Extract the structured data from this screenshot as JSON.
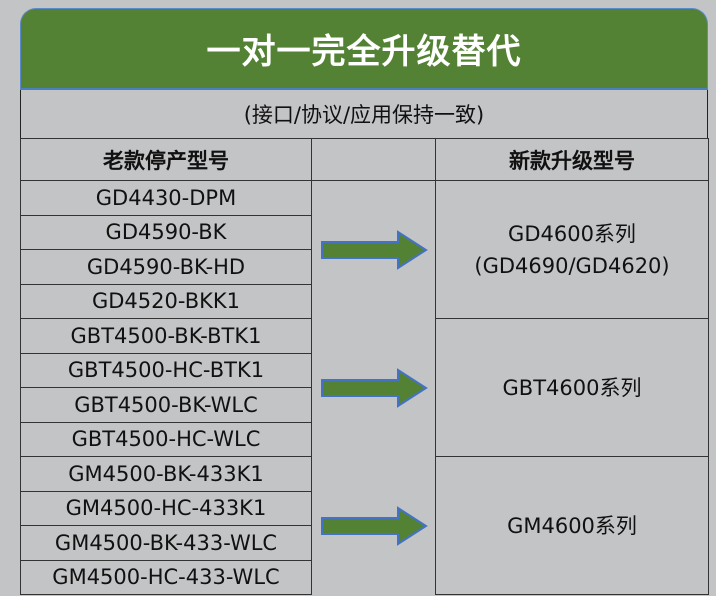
{
  "title": "一对一完全升级替代",
  "subtitle": "(接口/协议/应用保持一致)",
  "headers": {
    "old": "老款停产型号",
    "new": "新款升级型号"
  },
  "groups": [
    {
      "old": [
        "GD4430-DPM",
        "GD4590-BK",
        "GD4590-BK-HD",
        "GD4520-BKK1"
      ],
      "new": [
        "GD4600系列",
        "(GD4690/GD4620)"
      ]
    },
    {
      "old": [
        "GBT4500-BK-BTK1",
        "GBT4500-HC-BTK1",
        "GBT4500-BK-WLC",
        "GBT4500-HC-WLC"
      ],
      "new": [
        "GBT4600系列"
      ]
    },
    {
      "old": [
        "GM4500-BK-433K1",
        "GM4500-HC-433K1",
        "GM4500-BK-433-WLC",
        "GM4500-HC-433-WLC"
      ],
      "new": [
        "GM4600系列"
      ]
    }
  ],
  "colors": {
    "title_bg": "#548235",
    "arrow_fill": "#548235",
    "arrow_border": "#4472c4",
    "background": "#c3c4c6"
  }
}
